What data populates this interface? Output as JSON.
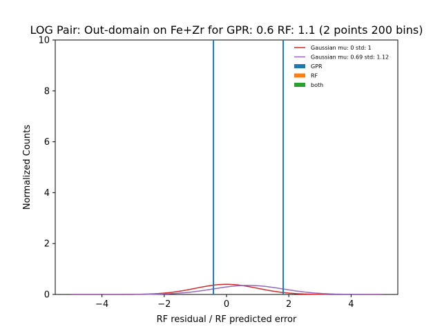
{
  "chart_data": {
    "type": "histogram",
    "title": "LOG Pair: Out-domain on Fe+Zr for GPR: 0.6 RF: 1.1 (2 points 200 bins)",
    "xlabel": "RF residual / RF predicted error",
    "ylabel": "Normalized Counts",
    "xlim": [
      -5.5,
      5.5
    ],
    "ylim": [
      0,
      10
    ],
    "xticks": [
      -4,
      -2,
      0,
      2,
      4
    ],
    "yticks": [
      0,
      2,
      4,
      6,
      8,
      10
    ],
    "xtick_labels": [
      "−4",
      "−2",
      "0",
      "2",
      "4"
    ],
    "ytick_labels": [
      "0",
      "2",
      "4",
      "6",
      "8",
      "10"
    ],
    "grid": false,
    "legend_position": "top-right",
    "series": [
      {
        "name": "Gaussian mu: 0 std: 1",
        "kind": "gaussian",
        "mu": 0,
        "std": 1,
        "x_range": [
          -5,
          5
        ],
        "color": "#d62728"
      },
      {
        "name": "Gaussian mu: 0.69 std: 1.12",
        "kind": "gaussian",
        "mu": 0.69,
        "std": 1.12,
        "x_range": [
          -5,
          5
        ],
        "color": "#9467bd"
      },
      {
        "name": "GPR",
        "kind": "hist",
        "color": "#1f77b4",
        "bars": [
          {
            "x": -0.42,
            "height": 10
          },
          {
            "x": 1.82,
            "height": 10
          }
        ]
      },
      {
        "name": "RF",
        "kind": "hist",
        "color": "#ff7f0e",
        "bars": []
      },
      {
        "name": "both",
        "kind": "hist",
        "color": "#2ca02c",
        "bars": []
      }
    ]
  }
}
